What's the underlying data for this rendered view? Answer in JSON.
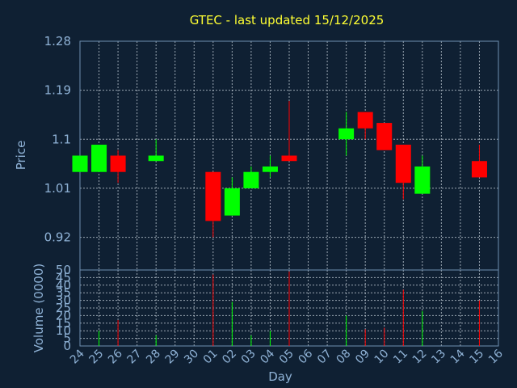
{
  "title": "GTEC - last updated 15/12/2025",
  "colors": {
    "background": "#0f2033",
    "up": "#00ff00",
    "down": "#ff0000",
    "title": "#ffff33",
    "axis_text": "#8fb2d6",
    "grid": "#c9d3dd"
  },
  "chart_data": [
    {
      "type": "candlestick",
      "ylabel": "Price",
      "ylim": [
        0.86,
        1.28
      ],
      "yticks": [
        1.28,
        1.19,
        1.1,
        1.01,
        0.92
      ],
      "grid": true,
      "days": [
        "24",
        "25",
        "26",
        "27",
        "28",
        "29",
        "30",
        "01",
        "02",
        "03",
        "04",
        "05",
        "06",
        "07",
        "08",
        "09",
        "10",
        "11",
        "12",
        "13",
        "14",
        "15",
        "16"
      ],
      "candles": [
        {
          "day": "24",
          "open": 1.04,
          "close": 1.07,
          "high": 1.07,
          "low": 1.04
        },
        {
          "day": "25",
          "open": 1.04,
          "close": 1.09,
          "high": 1.09,
          "low": 1.04
        },
        {
          "day": "26",
          "open": 1.07,
          "close": 1.04,
          "high": 1.08,
          "low": 1.02
        },
        {
          "day": "28",
          "open": 1.06,
          "close": 1.07,
          "high": 1.1,
          "low": 1.06
        },
        {
          "day": "01",
          "open": 1.04,
          "close": 0.95,
          "high": 1.04,
          "low": 0.92
        },
        {
          "day": "02",
          "open": 0.96,
          "close": 1.01,
          "high": 1.03,
          "low": 0.96
        },
        {
          "day": "03",
          "open": 1.01,
          "close": 1.04,
          "high": 1.05,
          "low": 1.01
        },
        {
          "day": "04",
          "open": 1.04,
          "close": 1.05,
          "high": 1.07,
          "low": 1.03
        },
        {
          "day": "05",
          "open": 1.07,
          "close": 1.06,
          "high": 1.17,
          "low": 1.06
        },
        {
          "day": "08",
          "open": 1.1,
          "close": 1.12,
          "high": 1.15,
          "low": 1.07
        },
        {
          "day": "09",
          "open": 1.15,
          "close": 1.12,
          "high": 1.15,
          "low": 1.1
        },
        {
          "day": "10",
          "open": 1.13,
          "close": 1.08,
          "high": 1.13,
          "low": 1.08
        },
        {
          "day": "11",
          "open": 1.09,
          "close": 1.02,
          "high": 1.09,
          "low": 0.99
        },
        {
          "day": "12",
          "open": 1.0,
          "close": 1.05,
          "high": 1.07,
          "low": 1.0
        },
        {
          "day": "15",
          "open": 1.06,
          "close": 1.03,
          "high": 1.09,
          "low": 1.03
        }
      ]
    },
    {
      "type": "bar",
      "ylabel": "Volume (0000)",
      "xlabel": "Day",
      "ylim": [
        0,
        50
      ],
      "yticks": [
        0,
        5,
        10,
        15,
        20,
        25,
        30,
        35,
        40,
        45,
        50
      ],
      "grid": true,
      "bars": [
        {
          "day": "25",
          "value": 10,
          "color": "up"
        },
        {
          "day": "26",
          "value": 17,
          "color": "down"
        },
        {
          "day": "28",
          "value": 7,
          "color": "up"
        },
        {
          "day": "01",
          "value": 47,
          "color": "down"
        },
        {
          "day": "02",
          "value": 29,
          "color": "up"
        },
        {
          "day": "03",
          "value": 7,
          "color": "up"
        },
        {
          "day": "04",
          "value": 10,
          "color": "up"
        },
        {
          "day": "05",
          "value": 49,
          "color": "down"
        },
        {
          "day": "08",
          "value": 20,
          "color": "up"
        },
        {
          "day": "09",
          "value": 11,
          "color": "down"
        },
        {
          "day": "10",
          "value": 12,
          "color": "down"
        },
        {
          "day": "11",
          "value": 37,
          "color": "down"
        },
        {
          "day": "12",
          "value": 23,
          "color": "up"
        },
        {
          "day": "15",
          "value": 30,
          "color": "down"
        }
      ]
    }
  ]
}
